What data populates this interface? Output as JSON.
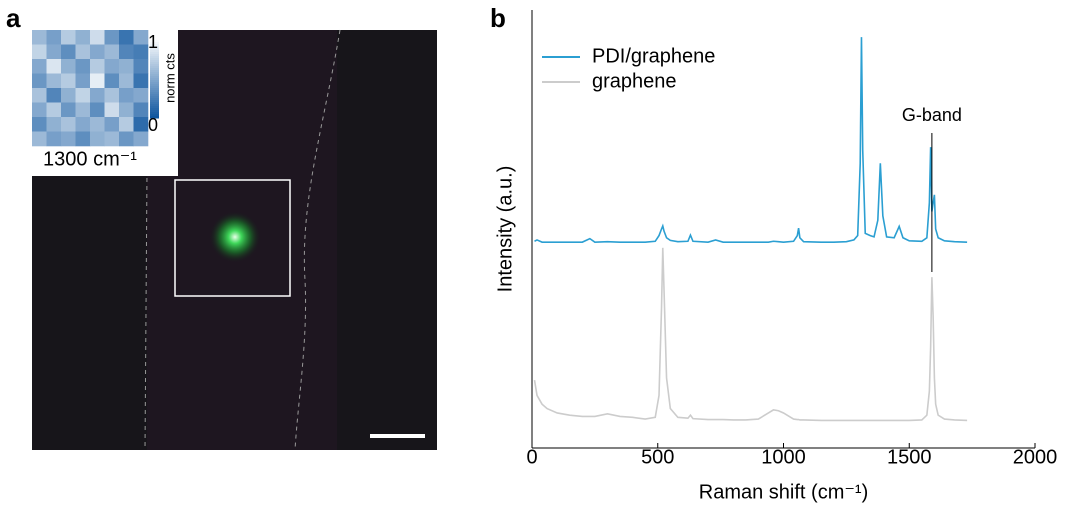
{
  "panel_labels": [
    "a",
    "b"
  ],
  "chart_data": [
    {
      "type": "heatmap",
      "title": "1300 cm⁻¹",
      "colormap": [
        "#08519c",
        "#ffffff"
      ],
      "colorbar": {
        "label": "norm cts",
        "lim": [
          0,
          1
        ],
        "ticks": [
          1,
          0
        ]
      },
      "values": [
        [
          0.6,
          0.45,
          0.7,
          0.55,
          0.8,
          0.4,
          0.2,
          0.5
        ],
        [
          0.75,
          0.5,
          0.35,
          0.65,
          0.5,
          0.6,
          0.3,
          0.25
        ],
        [
          0.5,
          0.85,
          0.55,
          0.4,
          0.7,
          0.5,
          0.55,
          0.3
        ],
        [
          0.4,
          0.6,
          0.7,
          0.45,
          0.9,
          0.35,
          0.6,
          0.2
        ],
        [
          0.65,
          0.3,
          0.55,
          0.75,
          0.5,
          0.65,
          0.45,
          0.5
        ],
        [
          0.5,
          0.7,
          0.4,
          0.6,
          0.35,
          0.8,
          0.55,
          0.3
        ],
        [
          0.35,
          0.55,
          0.65,
          0.5,
          0.6,
          0.45,
          0.7,
          0.15
        ],
        [
          0.6,
          0.45,
          0.5,
          0.35,
          0.55,
          0.6,
          0.4,
          0.5
        ]
      ]
    },
    {
      "type": "line",
      "xlabel": "Raman shift (cm⁻¹)",
      "ylabel": "Intensity (a.u.)",
      "xlim": [
        0,
        2000
      ],
      "xticks": [
        0,
        500,
        1000,
        1500,
        2000
      ],
      "ylim": [
        0,
        10
      ],
      "legend": "upper left",
      "annotations": [
        {
          "text": "G-band",
          "x": 1590
        }
      ],
      "x": [
        10,
        20,
        40,
        60,
        100,
        150,
        200,
        230,
        250,
        300,
        350,
        400,
        450,
        490,
        505,
        515,
        520,
        525,
        535,
        550,
        580,
        620,
        630,
        640,
        700,
        730,
        760,
        800,
        850,
        900,
        940,
        960,
        980,
        1000,
        1040,
        1055,
        1060,
        1065,
        1080,
        1150,
        1200,
        1250,
        1280,
        1295,
        1305,
        1310,
        1315,
        1325,
        1345,
        1360,
        1375,
        1385,
        1395,
        1410,
        1440,
        1460,
        1475,
        1500,
        1550,
        1570,
        1580,
        1585,
        1590,
        1595,
        1600,
        1605,
        1615,
        1640,
        1680,
        1730
      ],
      "series": [
        {
          "name": "PDI/graphene",
          "color": "#2b9fd2",
          "values": [
            4.72,
            4.75,
            4.7,
            4.7,
            4.7,
            4.7,
            4.7,
            4.78,
            4.7,
            4.71,
            4.7,
            4.7,
            4.7,
            4.72,
            4.85,
            5.0,
            5.07,
            4.95,
            4.8,
            4.74,
            4.71,
            4.72,
            4.86,
            4.72,
            4.7,
            4.75,
            4.7,
            4.7,
            4.7,
            4.7,
            4.7,
            4.72,
            4.71,
            4.7,
            4.72,
            4.85,
            5.02,
            4.8,
            4.71,
            4.7,
            4.7,
            4.71,
            4.75,
            4.85,
            6.5,
            9.38,
            6.8,
            4.9,
            4.85,
            4.82,
            5.2,
            6.5,
            5.3,
            4.82,
            4.8,
            5.06,
            4.8,
            4.73,
            4.72,
            4.8,
            5.6,
            6.87,
            5.4,
            5.6,
            5.78,
            5.0,
            4.8,
            4.73,
            4.71,
            4.7
          ]
        },
        {
          "name": "graphene",
          "color": "#cccccc",
          "values": [
            1.55,
            1.2,
            1.0,
            0.9,
            0.8,
            0.75,
            0.72,
            0.72,
            0.72,
            0.78,
            0.72,
            0.7,
            0.66,
            0.7,
            1.2,
            3.2,
            4.57,
            3.6,
            1.6,
            0.9,
            0.7,
            0.68,
            0.75,
            0.67,
            0.65,
            0.65,
            0.65,
            0.64,
            0.64,
            0.66,
            0.8,
            0.87,
            0.85,
            0.8,
            0.66,
            0.65,
            0.65,
            0.64,
            0.64,
            0.63,
            0.63,
            0.63,
            0.63,
            0.63,
            0.63,
            0.63,
            0.63,
            0.63,
            0.63,
            0.63,
            0.63,
            0.63,
            0.63,
            0.63,
            0.63,
            0.63,
            0.63,
            0.63,
            0.64,
            0.75,
            1.3,
            2.3,
            3.9,
            3.0,
            1.6,
            1.0,
            0.75,
            0.66,
            0.64,
            0.63
          ]
        }
      ]
    }
  ]
}
